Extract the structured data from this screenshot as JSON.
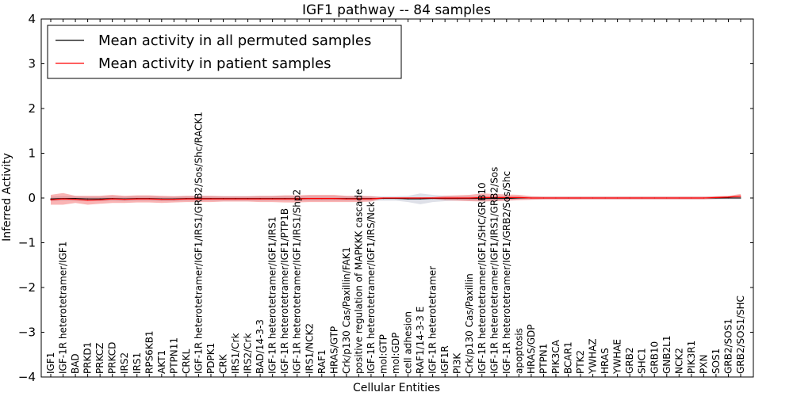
{
  "chart_data": {
    "type": "line",
    "title": "IGF1 pathway -- 84 samples",
    "xlabel": "Cellular Entities",
    "ylabel": "Inferred Activity",
    "ylim": [
      -4,
      4
    ],
    "yticks": [
      -4,
      -3,
      -2,
      -1,
      0,
      1,
      2,
      3,
      4
    ],
    "ytick_labels": [
      "−4",
      "−3",
      "−2",
      "−1",
      "0",
      "1",
      "2",
      "3",
      "4"
    ],
    "legend_position": "top-left",
    "categories": [
      "IGF1",
      "IGF-1R heterotetramer/IGF1",
      "BAD",
      "PRKD1",
      "PRKCZ",
      "PRKCD",
      "IRS2",
      "IRS1",
      "RPS6KB1",
      "AKT1",
      "PTPN11",
      "CRKL",
      "IGF-1R heterotetramer/IGF1/IRS1/GRB2/Sos/Shc/RACK1",
      "PDPK1",
      "CRK",
      "IRS1/Crk",
      "IRS2/Crk",
      "BAD/14-3-3",
      "IGF-1R heterotetramer/IGF1/IRS1",
      "IGF-1R heterotetramer/IGF1/PTP1B",
      "IGF-1R heterotetramer/IGF1/IRS1/Shp2",
      "IRS1/NCK2",
      "RAF1",
      "HRAS/GTP",
      "Crk/p130 Cas/Paxillin/FAK1",
      "positive regulation of MAPKKK cascade",
      "IGF-1R heterotetramer/IGF1/IRS/Nck",
      "mol:GTP",
      "mol:GDP",
      "cell adhesion",
      "RAF1/14-3-3 E",
      "IGF-1R heterotetramer",
      "IGF1R",
      "PI3K",
      "Crk/p130 Cas/Paxillin",
      "IGF-1R heterotetramer/IGF1/SHC/GRB10",
      "IGF-1R heterotetramer/IGF1/IRS1/GRB2/Sos",
      "IGF-1R heterotetramer/IGF1/GRB2/Sos/Shc",
      "apoptosis",
      "HRAS/GDP",
      "PTPN1",
      "PIK3CA",
      "BCAR1",
      "PTK2",
      "YWHAZ",
      "HRAS",
      "YWHAE",
      "GRB2",
      "SHC1",
      "GRB10",
      "GNB2L1",
      "NCK2",
      "PIK3R1",
      "PXN",
      "SOS1",
      "GRB2/SOS1",
      "GRB2/SOS1/SHC"
    ],
    "series": [
      {
        "name": "Mean activity in all permuted samples",
        "color": "#000000",
        "values": [
          -0.02,
          -0.01,
          -0.01,
          -0.02,
          -0.02,
          -0.01,
          -0.02,
          -0.01,
          -0.01,
          -0.02,
          -0.02,
          -0.01,
          -0.01,
          -0.01,
          -0.01,
          -0.01,
          -0.01,
          -0.01,
          -0.01,
          -0.01,
          -0.01,
          -0.01,
          -0.01,
          -0.01,
          -0.01,
          -0.01,
          -0.01,
          -0.01,
          -0.01,
          -0.02,
          -0.02,
          -0.01,
          -0.01,
          -0.01,
          -0.01,
          -0.01,
          -0.01,
          -0.01,
          0.0,
          0.0,
          0.0,
          0.0,
          0.0,
          0.0,
          0.0,
          0.0,
          0.0,
          0.0,
          0.0,
          0.0,
          0.0,
          0.0,
          0.0,
          0.0,
          0.0,
          0.0,
          0.0
        ],
        "band": [
          0.05,
          0.05,
          0.05,
          0.05,
          0.05,
          0.05,
          0.05,
          0.05,
          0.05,
          0.05,
          0.05,
          0.05,
          0.05,
          0.05,
          0.05,
          0.05,
          0.05,
          0.05,
          0.05,
          0.05,
          0.05,
          0.05,
          0.05,
          0.05,
          0.05,
          0.05,
          0.05,
          0.05,
          0.05,
          0.07,
          0.12,
          0.08,
          0.06,
          0.05,
          0.05,
          0.05,
          0.05,
          0.05,
          0.03,
          0.03,
          0.03,
          0.03,
          0.03,
          0.03,
          0.03,
          0.03,
          0.03,
          0.03,
          0.03,
          0.03,
          0.03,
          0.03,
          0.03,
          0.03,
          0.03,
          0.03,
          0.03
        ]
      },
      {
        "name": "Mean activity in patient samples",
        "color": "#ff0000",
        "values": [
          -0.04,
          -0.02,
          -0.03,
          -0.05,
          -0.04,
          -0.02,
          -0.03,
          -0.02,
          -0.02,
          -0.03,
          -0.03,
          -0.02,
          -0.02,
          -0.02,
          -0.02,
          -0.02,
          -0.02,
          -0.02,
          -0.02,
          -0.02,
          -0.02,
          -0.01,
          -0.01,
          -0.01,
          -0.02,
          -0.02,
          -0.02,
          0.0,
          0.0,
          0.0,
          0.0,
          0.0,
          0.0,
          0.0,
          0.0,
          0.01,
          0.01,
          0.01,
          0.01,
          0.0,
          0.0,
          0.0,
          0.0,
          0.0,
          0.0,
          0.0,
          0.0,
          0.0,
          0.0,
          0.0,
          0.0,
          0.0,
          0.0,
          0.0,
          0.01,
          0.02,
          0.04
        ],
        "band": [
          0.11,
          0.13,
          0.08,
          0.1,
          0.09,
          0.09,
          0.08,
          0.08,
          0.08,
          0.08,
          0.07,
          0.07,
          0.07,
          0.07,
          0.06,
          0.06,
          0.06,
          0.07,
          0.07,
          0.08,
          0.08,
          0.08,
          0.08,
          0.08,
          0.07,
          0.07,
          0.06,
          0.01,
          0.01,
          0.01,
          0.01,
          0.02,
          0.05,
          0.06,
          0.07,
          0.09,
          0.08,
          0.07,
          0.06,
          0.04,
          0.03,
          0.03,
          0.03,
          0.03,
          0.03,
          0.03,
          0.03,
          0.03,
          0.03,
          0.03,
          0.03,
          0.03,
          0.03,
          0.03,
          0.03,
          0.03,
          0.05
        ]
      }
    ]
  }
}
